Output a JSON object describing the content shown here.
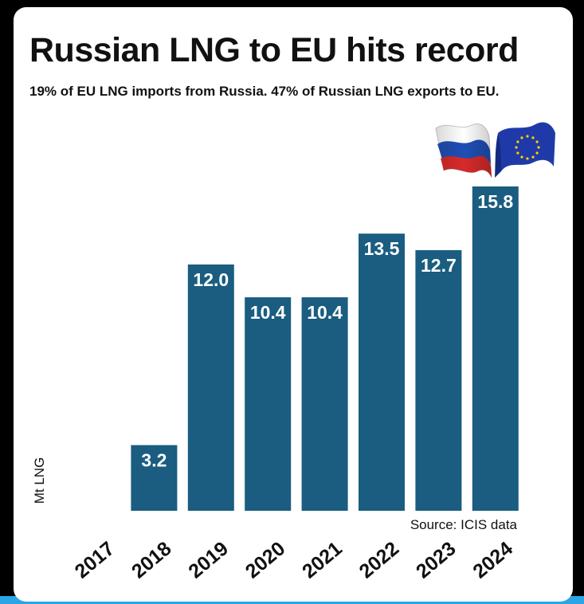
{
  "title": "Russian LNG to EU hits record",
  "subtitle": "19% of EU LNG imports from Russia. 47% of Russian LNG exports to EU.",
  "source": "Source: ICIS data",
  "colors": {
    "bar": "#1a5d80",
    "bar_label": "#ffffff",
    "text": "#111111",
    "accent_strip": "#2aa5e6",
    "flag_russia": [
      "#ffffff",
      "#1f4fb5",
      "#d72a2a"
    ],
    "flag_eu": [
      "#1f3aa8",
      "#ffd200"
    ]
  },
  "icons": [
    "russia-flag-icon",
    "eu-flag-icon"
  ],
  "chart_data": {
    "type": "bar",
    "title": "Russian LNG to EU hits record",
    "subtitle": "19% of EU LNG imports from Russia. 47% of Russian LNG exports to EU.",
    "xlabel": "",
    "ylabel": "Mt LNG",
    "categories": [
      "2017",
      "2018",
      "2019",
      "2020",
      "2021",
      "2022",
      "2023",
      "2024"
    ],
    "values": [
      0,
      3.2,
      12.0,
      10.4,
      10.4,
      13.5,
      12.7,
      15.8
    ],
    "value_labels": [
      "",
      "3.2",
      "12.0",
      "10.4",
      "10.4",
      "13.5",
      "12.7",
      "15.8"
    ],
    "ylim": [
      0,
      15.8
    ],
    "grid": false,
    "legend": "none"
  }
}
